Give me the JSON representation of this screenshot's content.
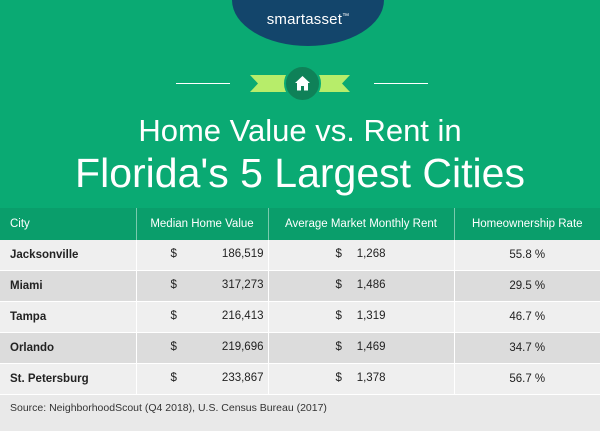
{
  "brand": {
    "name": "smartasset",
    "trademark": "™"
  },
  "title": {
    "line1": "Home Value vs. Rent in",
    "line2": "Florida's 5 Largest Cities"
  },
  "colors": {
    "header_green": "#0aaa73",
    "table_header_green": "#0a9e6b",
    "brand_navy": "#13456b",
    "ribbon_green": "#b7ed6a"
  },
  "icons": {
    "badge": "house-icon"
  },
  "chart_data": {
    "type": "table",
    "columns": [
      "City",
      "Median Home Value",
      "Average Market Monthly Rent",
      "Homeownership Rate"
    ],
    "currency_symbol": "$",
    "rows": [
      {
        "city": "Jacksonville",
        "median_home_value": "186,519",
        "avg_monthly_rent": "1,268",
        "homeownership_rate": "55.8 %"
      },
      {
        "city": "Miami",
        "median_home_value": "317,273",
        "avg_monthly_rent": "1,486",
        "homeownership_rate": "29.5 %"
      },
      {
        "city": "Tampa",
        "median_home_value": "216,413",
        "avg_monthly_rent": "1,319",
        "homeownership_rate": "46.7 %"
      },
      {
        "city": "Orlando",
        "median_home_value": "219,696",
        "avg_monthly_rent": "1,469",
        "homeownership_rate": "34.7 %"
      },
      {
        "city": "St. Petersburg",
        "median_home_value": "233,867",
        "avg_monthly_rent": "1,378",
        "homeownership_rate": "56.7 %"
      }
    ],
    "source": "Source: NeighborhoodScout (Q4 2018), U.S. Census Bureau (2017)"
  }
}
